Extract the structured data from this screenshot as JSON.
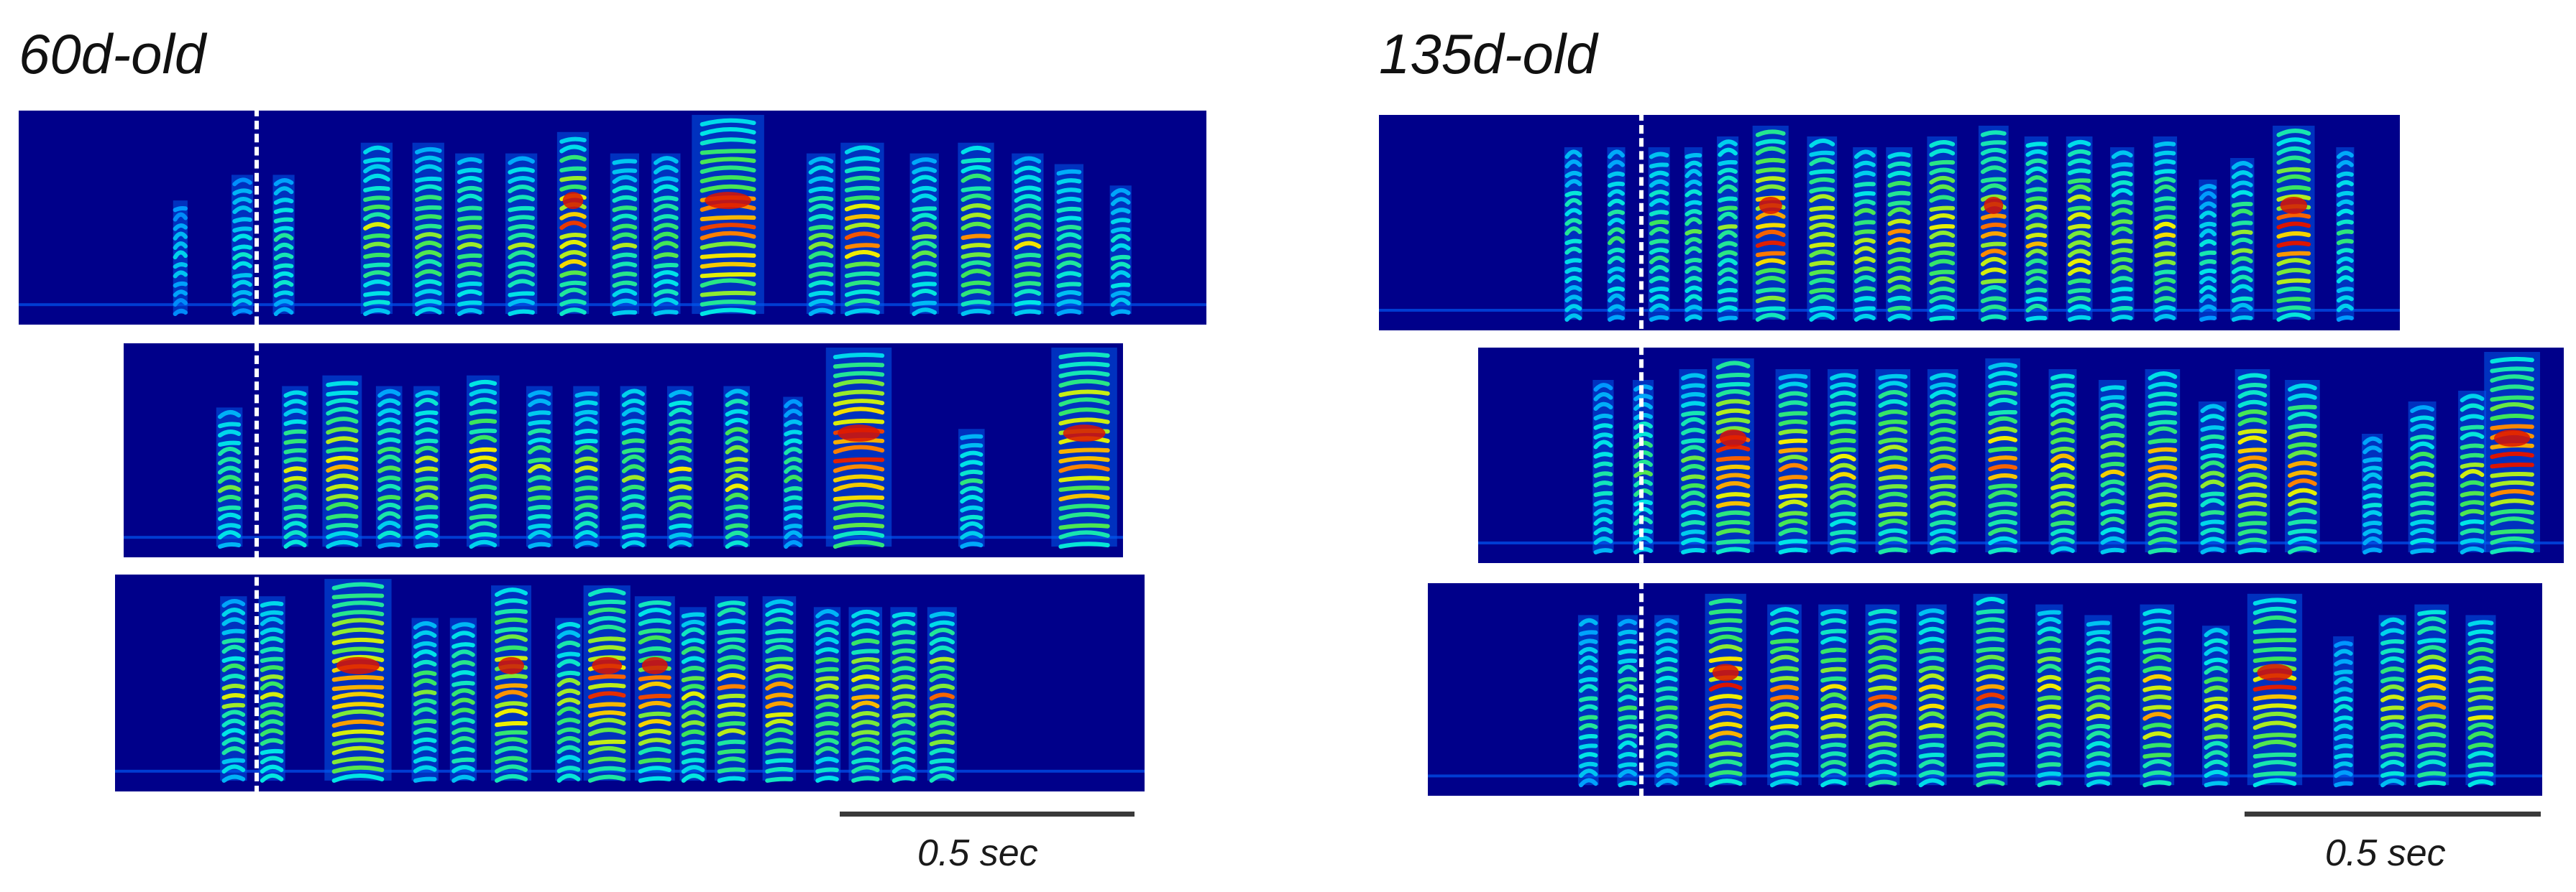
{
  "panels": [
    {
      "title": "60d-old",
      "scale_label": "0.5 sec",
      "rows": [
        {
          "syllables": [
            {
              "t": 0.03,
              "w": 0.01,
              "lo": 0.05,
              "hi": 0.58,
              "i": 0.45
            },
            {
              "t": 0.09,
              "w": 0.015,
              "lo": 0.05,
              "hi": 0.7,
              "i": 0.55
            },
            {
              "t": 0.13,
              "w": 0.015,
              "lo": 0.05,
              "hi": 0.7,
              "i": 0.6
            },
            {
              "t": 0.22,
              "w": 0.022,
              "lo": 0.05,
              "hi": 0.85,
              "i": 0.75
            },
            {
              "t": 0.27,
              "w": 0.022,
              "lo": 0.05,
              "hi": 0.85,
              "i": 0.75
            },
            {
              "t": 0.31,
              "w": 0.02,
              "lo": 0.05,
              "hi": 0.8,
              "i": 0.7
            },
            {
              "t": 0.36,
              "w": 0.022,
              "lo": 0.05,
              "hi": 0.8,
              "i": 0.7
            },
            {
              "t": 0.41,
              "w": 0.022,
              "lo": 0.05,
              "hi": 0.9,
              "i": 0.9
            },
            {
              "t": 0.46,
              "w": 0.02,
              "lo": 0.05,
              "hi": 0.8,
              "i": 0.7
            },
            {
              "t": 0.5,
              "w": 0.02,
              "lo": 0.05,
              "hi": 0.8,
              "i": 0.7
            },
            {
              "t": 0.56,
              "w": 0.05,
              "lo": 0.05,
              "hi": 0.98,
              "i": 0.95
            },
            {
              "t": 0.65,
              "w": 0.02,
              "lo": 0.05,
              "hi": 0.8,
              "i": 0.7
            },
            {
              "t": 0.69,
              "w": 0.03,
              "lo": 0.05,
              "hi": 0.85,
              "i": 0.85
            },
            {
              "t": 0.75,
              "w": 0.02,
              "lo": 0.05,
              "hi": 0.8,
              "i": 0.7
            },
            {
              "t": 0.8,
              "w": 0.025,
              "lo": 0.05,
              "hi": 0.85,
              "i": 0.8
            },
            {
              "t": 0.85,
              "w": 0.022,
              "lo": 0.05,
              "hi": 0.8,
              "i": 0.75
            },
            {
              "t": 0.89,
              "w": 0.02,
              "lo": 0.05,
              "hi": 0.75,
              "i": 0.65
            },
            {
              "t": 0.94,
              "w": 0.015,
              "lo": 0.05,
              "hi": 0.65,
              "i": 0.55
            }
          ]
        },
        {
          "syllables": [
            {
              "t": 0.07,
              "w": 0.02,
              "lo": 0.05,
              "hi": 0.7,
              "i": 0.7
            },
            {
              "t": 0.14,
              "w": 0.02,
              "lo": 0.05,
              "hi": 0.8,
              "i": 0.75
            },
            {
              "t": 0.19,
              "w": 0.03,
              "lo": 0.05,
              "hi": 0.85,
              "i": 0.8
            },
            {
              "t": 0.24,
              "w": 0.02,
              "lo": 0.05,
              "hi": 0.8,
              "i": 0.7
            },
            {
              "t": 0.28,
              "w": 0.02,
              "lo": 0.05,
              "hi": 0.8,
              "i": 0.75
            },
            {
              "t": 0.34,
              "w": 0.025,
              "lo": 0.05,
              "hi": 0.85,
              "i": 0.8
            },
            {
              "t": 0.4,
              "w": 0.02,
              "lo": 0.05,
              "hi": 0.8,
              "i": 0.7
            },
            {
              "t": 0.45,
              "w": 0.02,
              "lo": 0.05,
              "hi": 0.8,
              "i": 0.7
            },
            {
              "t": 0.5,
              "w": 0.02,
              "lo": 0.05,
              "hi": 0.8,
              "i": 0.7
            },
            {
              "t": 0.55,
              "w": 0.02,
              "lo": 0.05,
              "hi": 0.8,
              "i": 0.75
            },
            {
              "t": 0.61,
              "w": 0.02,
              "lo": 0.05,
              "hi": 0.8,
              "i": 0.8
            },
            {
              "t": 0.67,
              "w": 0.015,
              "lo": 0.05,
              "hi": 0.75,
              "i": 0.6
            },
            {
              "t": 0.74,
              "w": 0.05,
              "lo": 0.05,
              "hi": 0.98,
              "i": 0.95
            },
            {
              "t": 0.86,
              "w": 0.02,
              "lo": 0.05,
              "hi": 0.6,
              "i": 0.6
            },
            {
              "t": 0.98,
              "w": 0.05,
              "lo": 0.05,
              "hi": 0.98,
              "i": 0.95
            }
          ]
        },
        {
          "syllables": [
            {
              "t": 0.07,
              "w": 0.02,
              "lo": 0.05,
              "hi": 0.9,
              "i": 0.7
            },
            {
              "t": 0.11,
              "w": 0.02,
              "lo": 0.05,
              "hi": 0.9,
              "i": 0.75
            },
            {
              "t": 0.2,
              "w": 0.05,
              "lo": 0.05,
              "hi": 0.98,
              "i": 0.95
            },
            {
              "t": 0.27,
              "w": 0.02,
              "lo": 0.05,
              "hi": 0.8,
              "i": 0.7
            },
            {
              "t": 0.31,
              "w": 0.02,
              "lo": 0.05,
              "hi": 0.8,
              "i": 0.7
            },
            {
              "t": 0.36,
              "w": 0.03,
              "lo": 0.05,
              "hi": 0.95,
              "i": 0.9
            },
            {
              "t": 0.42,
              "w": 0.02,
              "lo": 0.05,
              "hi": 0.8,
              "i": 0.75
            },
            {
              "t": 0.46,
              "w": 0.035,
              "lo": 0.05,
              "hi": 0.95,
              "i": 0.9
            },
            {
              "t": 0.51,
              "w": 0.03,
              "lo": 0.05,
              "hi": 0.9,
              "i": 0.9
            },
            {
              "t": 0.55,
              "w": 0.02,
              "lo": 0.05,
              "hi": 0.85,
              "i": 0.75
            },
            {
              "t": 0.59,
              "w": 0.025,
              "lo": 0.05,
              "hi": 0.9,
              "i": 0.85
            },
            {
              "t": 0.64,
              "w": 0.025,
              "lo": 0.05,
              "hi": 0.9,
              "i": 0.85
            },
            {
              "t": 0.69,
              "w": 0.02,
              "lo": 0.05,
              "hi": 0.85,
              "i": 0.75
            },
            {
              "t": 0.73,
              "w": 0.025,
              "lo": 0.05,
              "hi": 0.85,
              "i": 0.85
            },
            {
              "t": 0.77,
              "w": 0.02,
              "lo": 0.05,
              "hi": 0.85,
              "i": 0.8
            },
            {
              "t": 0.81,
              "w": 0.022,
              "lo": 0.05,
              "hi": 0.85,
              "i": 0.85
            }
          ]
        }
      ]
    },
    {
      "title": "135d-old",
      "scale_label": "0.5 sec",
      "rows": [
        {
          "syllables": [
            {
              "t": 0.06,
              "w": 0.015,
              "lo": 0.05,
              "hi": 0.85,
              "i": 0.6
            },
            {
              "t": 0.11,
              "w": 0.015,
              "lo": 0.05,
              "hi": 0.85,
              "i": 0.6
            },
            {
              "t": 0.16,
              "w": 0.018,
              "lo": 0.05,
              "hi": 0.85,
              "i": 0.65
            },
            {
              "t": 0.2,
              "w": 0.015,
              "lo": 0.05,
              "hi": 0.85,
              "i": 0.65
            },
            {
              "t": 0.24,
              "w": 0.018,
              "lo": 0.05,
              "hi": 0.9,
              "i": 0.7
            },
            {
              "t": 0.29,
              "w": 0.03,
              "lo": 0.05,
              "hi": 0.95,
              "i": 0.95
            },
            {
              "t": 0.35,
              "w": 0.025,
              "lo": 0.05,
              "hi": 0.9,
              "i": 0.85
            },
            {
              "t": 0.4,
              "w": 0.02,
              "lo": 0.05,
              "hi": 0.85,
              "i": 0.75
            },
            {
              "t": 0.44,
              "w": 0.022,
              "lo": 0.05,
              "hi": 0.85,
              "i": 0.85
            },
            {
              "t": 0.49,
              "w": 0.025,
              "lo": 0.05,
              "hi": 0.9,
              "i": 0.85
            },
            {
              "t": 0.55,
              "w": 0.025,
              "lo": 0.05,
              "hi": 0.95,
              "i": 0.9
            },
            {
              "t": 0.6,
              "w": 0.02,
              "lo": 0.05,
              "hi": 0.9,
              "i": 0.8
            },
            {
              "t": 0.65,
              "w": 0.022,
              "lo": 0.05,
              "hi": 0.9,
              "i": 0.85
            },
            {
              "t": 0.7,
              "w": 0.02,
              "lo": 0.05,
              "hi": 0.85,
              "i": 0.75
            },
            {
              "t": 0.75,
              "w": 0.02,
              "lo": 0.05,
              "hi": 0.9,
              "i": 0.8
            },
            {
              "t": 0.8,
              "w": 0.015,
              "lo": 0.05,
              "hi": 0.7,
              "i": 0.55
            },
            {
              "t": 0.84,
              "w": 0.02,
              "lo": 0.05,
              "hi": 0.8,
              "i": 0.7
            },
            {
              "t": 0.9,
              "w": 0.035,
              "lo": 0.05,
              "hi": 0.95,
              "i": 0.95
            },
            {
              "t": 0.96,
              "w": 0.015,
              "lo": 0.05,
              "hi": 0.85,
              "i": 0.6
            }
          ]
        },
        {
          "syllables": [
            {
              "t": 0.06,
              "w": 0.015,
              "lo": 0.05,
              "hi": 0.85,
              "i": 0.6
            },
            {
              "t": 0.1,
              "w": 0.015,
              "lo": 0.05,
              "hi": 0.85,
              "i": 0.65
            },
            {
              "t": 0.15,
              "w": 0.02,
              "lo": 0.05,
              "hi": 0.9,
              "i": 0.7
            },
            {
              "t": 0.19,
              "w": 0.03,
              "lo": 0.05,
              "hi": 0.95,
              "i": 0.95
            },
            {
              "t": 0.25,
              "w": 0.025,
              "lo": 0.05,
              "hi": 0.9,
              "i": 0.85
            },
            {
              "t": 0.3,
              "w": 0.022,
              "lo": 0.05,
              "hi": 0.9,
              "i": 0.8
            },
            {
              "t": 0.35,
              "w": 0.025,
              "lo": 0.05,
              "hi": 0.9,
              "i": 0.85
            },
            {
              "t": 0.4,
              "w": 0.022,
              "lo": 0.05,
              "hi": 0.9,
              "i": 0.8
            },
            {
              "t": 0.46,
              "w": 0.025,
              "lo": 0.05,
              "hi": 0.95,
              "i": 0.85
            },
            {
              "t": 0.52,
              "w": 0.02,
              "lo": 0.05,
              "hi": 0.9,
              "i": 0.8
            },
            {
              "t": 0.57,
              "w": 0.02,
              "lo": 0.05,
              "hi": 0.85,
              "i": 0.75
            },
            {
              "t": 0.62,
              "w": 0.025,
              "lo": 0.05,
              "hi": 0.9,
              "i": 0.85
            },
            {
              "t": 0.67,
              "w": 0.02,
              "lo": 0.05,
              "hi": 0.75,
              "i": 0.7
            },
            {
              "t": 0.71,
              "w": 0.025,
              "lo": 0.05,
              "hi": 0.9,
              "i": 0.85
            },
            {
              "t": 0.76,
              "w": 0.025,
              "lo": 0.05,
              "hi": 0.85,
              "i": 0.85
            },
            {
              "t": 0.83,
              "w": 0.015,
              "lo": 0.05,
              "hi": 0.6,
              "i": 0.55
            },
            {
              "t": 0.88,
              "w": 0.02,
              "lo": 0.05,
              "hi": 0.75,
              "i": 0.7
            },
            {
              "t": 0.93,
              "w": 0.02,
              "lo": 0.05,
              "hi": 0.8,
              "i": 0.75
            },
            {
              "t": 0.97,
              "w": 0.04,
              "lo": 0.05,
              "hi": 0.98,
              "i": 0.95
            }
          ]
        },
        {
          "syllables": [
            {
              "t": 0.05,
              "w": 0.015,
              "lo": 0.05,
              "hi": 0.85,
              "i": 0.6
            },
            {
              "t": 0.09,
              "w": 0.015,
              "lo": 0.05,
              "hi": 0.85,
              "i": 0.65
            },
            {
              "t": 0.13,
              "w": 0.018,
              "lo": 0.05,
              "hi": 0.85,
              "i": 0.65
            },
            {
              "t": 0.19,
              "w": 0.03,
              "lo": 0.05,
              "hi": 0.95,
              "i": 0.95
            },
            {
              "t": 0.25,
              "w": 0.025,
              "lo": 0.05,
              "hi": 0.9,
              "i": 0.85
            },
            {
              "t": 0.3,
              "w": 0.022,
              "lo": 0.05,
              "hi": 0.9,
              "i": 0.8
            },
            {
              "t": 0.35,
              "w": 0.025,
              "lo": 0.05,
              "hi": 0.9,
              "i": 0.85
            },
            {
              "t": 0.4,
              "w": 0.022,
              "lo": 0.05,
              "hi": 0.9,
              "i": 0.8
            },
            {
              "t": 0.46,
              "w": 0.025,
              "lo": 0.05,
              "hi": 0.95,
              "i": 0.85
            },
            {
              "t": 0.52,
              "w": 0.02,
              "lo": 0.05,
              "hi": 0.9,
              "i": 0.8
            },
            {
              "t": 0.57,
              "w": 0.02,
              "lo": 0.05,
              "hi": 0.85,
              "i": 0.75
            },
            {
              "t": 0.63,
              "w": 0.025,
              "lo": 0.05,
              "hi": 0.9,
              "i": 0.85
            },
            {
              "t": 0.69,
              "w": 0.02,
              "lo": 0.05,
              "hi": 0.8,
              "i": 0.75
            },
            {
              "t": 0.75,
              "w": 0.04,
              "lo": 0.05,
              "hi": 0.95,
              "i": 0.95
            },
            {
              "t": 0.82,
              "w": 0.015,
              "lo": 0.05,
              "hi": 0.75,
              "i": 0.55
            },
            {
              "t": 0.87,
              "w": 0.02,
              "lo": 0.05,
              "hi": 0.85,
              "i": 0.75
            },
            {
              "t": 0.91,
              "w": 0.025,
              "lo": 0.05,
              "hi": 0.9,
              "i": 0.85
            },
            {
              "t": 0.96,
              "w": 0.022,
              "lo": 0.05,
              "hi": 0.85,
              "i": 0.8
            }
          ]
        }
      ]
    }
  ],
  "colors": {
    "background": "#00008a",
    "onset_line": "#ffffff",
    "scale_bar": "#3a3a3a",
    "title": "#111111"
  }
}
